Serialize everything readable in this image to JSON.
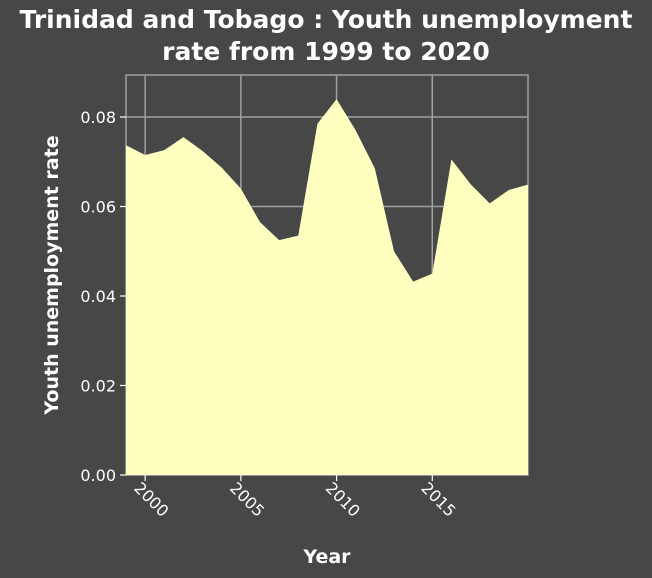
{
  "chart_data": {
    "type": "area",
    "title_lines": [
      "Trinidad and Tobago : Youth unemployment",
      "rate from 1999 to 2020"
    ],
    "xlabel": "Year",
    "ylabel": "Youth unemployment rate",
    "xlim": [
      1999,
      2020
    ],
    "ylim": [
      0,
      0.08
    ],
    "x_ticks": [
      2000,
      2005,
      2010,
      2015
    ],
    "y_ticks": [
      "0.00",
      "0.02",
      "0.04",
      "0.06",
      "0.08"
    ],
    "grid": true,
    "series": [
      {
        "x": [
          1999,
          2000,
          2001,
          2002,
          2003,
          2004,
          2005,
          2006,
          2007,
          2008,
          2009,
          2010,
          2011,
          2012,
          2013,
          2014,
          2015,
          2016,
          2017,
          2018,
          2019,
          2020
        ],
        "values": [
          0.0737,
          0.0715,
          0.0726,
          0.0755,
          0.0724,
          0.0687,
          0.064,
          0.0565,
          0.0525,
          0.0535,
          0.0785,
          0.084,
          0.077,
          0.0685,
          0.05,
          0.0432,
          0.045,
          0.0705,
          0.065,
          0.0607,
          0.0637,
          0.0649
        ]
      }
    ]
  },
  "colors": {
    "background": "#474747",
    "plot_area": "#474747",
    "fill": "#ffffbf",
    "grid": "#a0a0a0",
    "text": "#ffffff"
  }
}
